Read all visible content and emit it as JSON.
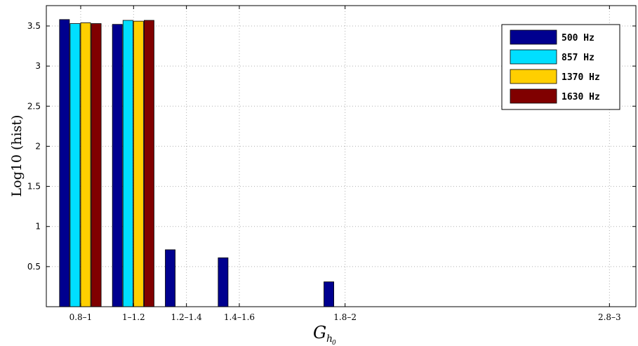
{
  "chart_data": {
    "type": "bar",
    "title": "",
    "xlabel": "G",
    "xlabel_subscript": "h",
    "xlabel_subsubscript": "0",
    "ylabel": "Log10 (hist)",
    "ylim": [
      0,
      3.5
    ],
    "yticks": [
      "0.5",
      "1",
      "1.5",
      "2",
      "2.5",
      "3",
      "3.5"
    ],
    "grid": true,
    "legend_position": "top-right",
    "categories": [
      "0.8–1",
      "1–1.2",
      "1.2–1.4",
      "1.4–1.6",
      "1.8–2",
      "2.8–3"
    ],
    "category_centers": [
      0.9,
      1.1,
      1.3,
      1.5,
      1.9,
      2.9
    ],
    "x_range": [
      0.77,
      3.0
    ],
    "series": [
      {
        "name": "500 Hz",
        "color": "#00008f",
        "values": [
          3.58,
          3.52,
          0.71,
          0.61,
          0.31,
          0.0
        ]
      },
      {
        "name": "857 Hz",
        "color": "#00dfff",
        "values": [
          3.53,
          3.57,
          0.0,
          0.0,
          0.0,
          0.0
        ]
      },
      {
        "name": "1370 Hz",
        "color": "#ffcf00",
        "values": [
          3.54,
          3.56,
          0.0,
          0.0,
          0.0,
          0.0
        ]
      },
      {
        "name": "1630 Hz",
        "color": "#800000",
        "values": [
          3.53,
          3.57,
          0.0,
          0.0,
          0.0,
          0.0
        ]
      }
    ]
  }
}
